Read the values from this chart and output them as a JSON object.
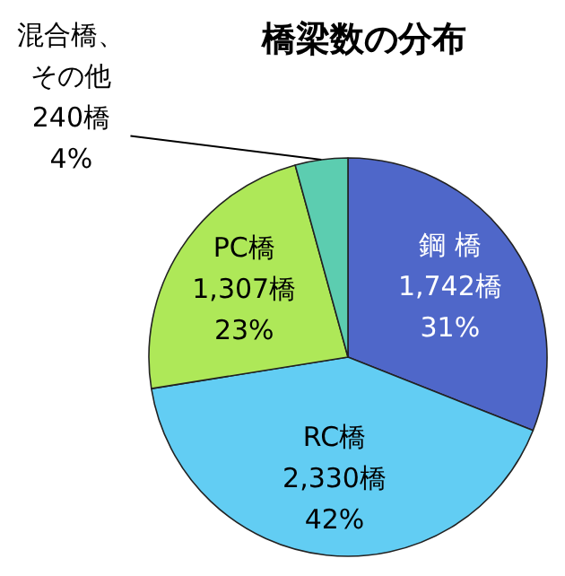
{
  "chart_data": {
    "type": "pie",
    "title": "橋梁数の分布",
    "categories": [
      "鋼 橋",
      "RC橋",
      "PC橋",
      "混合橋、その他"
    ],
    "values": [
      1742,
      2330,
      1307,
      240
    ],
    "value_labels": [
      "1,742橋\n31%",
      "2,330橋\n42%",
      "1,307橋\n23%",
      "240橋\n4%"
    ],
    "colors": [
      "#4f67c9",
      "#62cdf3",
      "#aee858",
      "#5ccdb0"
    ]
  }
}
